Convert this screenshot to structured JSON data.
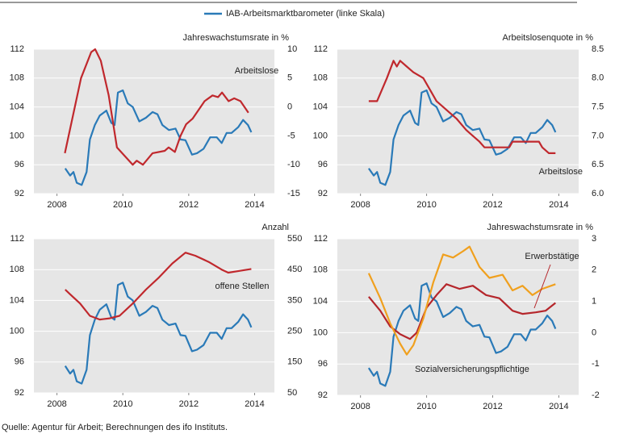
{
  "source": "Quelle: Agentur für Arbeit; Berechnungen des ifo Instituts.",
  "chart_data": [
    {
      "type": "line",
      "y2label": "Jahreswachstumsrate in %",
      "xlim": [
        2007.3,
        2014.6
      ],
      "xticks": [
        2008,
        2010,
        2012,
        2014
      ],
      "ylim": [
        92,
        112
      ],
      "yticks": [
        92,
        96,
        100,
        104,
        108,
        112
      ],
      "y2lim": [
        -15,
        10
      ],
      "y2ticks": [
        -15,
        -10,
        -5,
        0,
        5,
        10
      ],
      "grid": true,
      "series": [
        {
          "name": "IAB-Arbeitsmarktbarometer (linke Skala)",
          "color": "#2a7ab8",
          "x": [
            2008.25,
            2008.4,
            2008.5,
            2008.6,
            2008.75,
            2008.9,
            2009.0,
            2009.15,
            2009.3,
            2009.5,
            2009.65,
            2009.75,
            2009.85,
            2010.0,
            2010.15,
            2010.3,
            2010.5,
            2010.7,
            2010.9,
            2011.05,
            2011.2,
            2011.4,
            2011.6,
            2011.75,
            2011.9,
            2012.1,
            2012.25,
            2012.45,
            2012.65,
            2012.85,
            2013.0,
            2013.15,
            2013.3,
            2013.5,
            2013.65,
            2013.8,
            2013.9
          ],
          "values": [
            95.5,
            94.5,
            95,
            93.5,
            93.2,
            95,
            99.5,
            101.5,
            102.8,
            103.5,
            101.8,
            101.5,
            106,
            106.3,
            104.5,
            104,
            102,
            102.5,
            103.3,
            103.0,
            101.5,
            100.8,
            101,
            99.5,
            99.4,
            97.4,
            97.6,
            98.2,
            99.8,
            99.8,
            99,
            100.4,
            100.4,
            101.2,
            102.2,
            101.5,
            100.5
          ]
        },
        {
          "name": "Arbeitslose",
          "color": "#c0282d",
          "axis": "y2",
          "x": [
            2008.24,
            2008.73,
            2009.04,
            2009.16,
            2009.33,
            2009.57,
            2009.82,
            2010.06,
            2010.3,
            2010.42,
            2010.61,
            2010.9,
            2011.27,
            2011.39,
            2011.58,
            2011.75,
            2011.92,
            2012.12,
            2012.48,
            2012.72,
            2012.89,
            2013.01,
            2013.21,
            2013.38,
            2013.57,
            2013.81
          ],
          "values": [
            -8,
            5,
            9.5,
            10,
            8,
            2,
            -7,
            -8.5,
            -10,
            -9.3,
            -10,
            -8,
            -7.6,
            -7,
            -7.8,
            -5,
            -3,
            -2,
            1,
            2,
            1.7,
            2.5,
            1,
            1.5,
            1,
            -1
          ]
        }
      ]
    },
    {
      "type": "line",
      "y2label": "Arbeitslosenquote in %",
      "xlim": [
        2007.3,
        2014.6
      ],
      "xticks": [
        2008,
        2010,
        2012,
        2014
      ],
      "ylim": [
        92,
        112
      ],
      "yticks": [
        92,
        96,
        100,
        104,
        108,
        112
      ],
      "y2lim": [
        6,
        8.5
      ],
      "y2ticks": [
        {
          "value": 6,
          "label": "6.0"
        },
        6.5,
        {
          "value": 7,
          "label": "7.0"
        },
        7.5,
        {
          "value": 8,
          "label": "8.0"
        },
        8.5
      ],
      "grid": true,
      "series": [
        {
          "color": "#2a7ab8",
          "x": [
            2008.25,
            2008.4,
            2008.5,
            2008.6,
            2008.75,
            2008.9,
            2009.0,
            2009.15,
            2009.3,
            2009.5,
            2009.65,
            2009.75,
            2009.85,
            2010.0,
            2010.15,
            2010.3,
            2010.5,
            2010.7,
            2010.9,
            2011.05,
            2011.2,
            2011.4,
            2011.6,
            2011.75,
            2011.9,
            2012.1,
            2012.25,
            2012.45,
            2012.65,
            2012.85,
            2013.0,
            2013.15,
            2013.3,
            2013.5,
            2013.65,
            2013.8,
            2013.9
          ],
          "values": [
            95.5,
            94.5,
            95,
            93.5,
            93.2,
            95,
            99.5,
            101.5,
            102.8,
            103.5,
            101.8,
            101.5,
            106,
            106.3,
            104.5,
            104,
            102,
            102.5,
            103.3,
            103.0,
            101.5,
            100.8,
            101,
            99.5,
            99.4,
            97.4,
            97.6,
            98.2,
            99.8,
            99.8,
            99,
            100.4,
            100.4,
            101.2,
            102.2,
            101.5,
            100.5
          ]
        },
        {
          "name": "Arbeitslose",
          "color": "#c0282d",
          "axis": "y2",
          "x": [
            2008.25,
            2008.5,
            2008.8,
            2009.0,
            2009.1,
            2009.2,
            2009.4,
            2009.6,
            2009.9,
            2010.1,
            2010.3,
            2010.7,
            2010.9,
            2011.2,
            2011.4,
            2011.6,
            2011.75,
            2012.5,
            2012.6,
            2013.4,
            2013.5,
            2013.7,
            2013.9
          ],
          "values": [
            7.6,
            7.6,
            8.0,
            8.3,
            8.2,
            8.3,
            8.2,
            8.1,
            8.0,
            7.8,
            7.6,
            7.4,
            7.3,
            7.1,
            7.0,
            6.9,
            6.8,
            6.8,
            6.9,
            6.9,
            6.8,
            6.7,
            6.7
          ]
        }
      ]
    },
    {
      "type": "line",
      "y2label": "Anzahl",
      "xlim": [
        2007.3,
        2014.6
      ],
      "xticks": [
        2008,
        2010,
        2012,
        2014
      ],
      "ylim": [
        92,
        112
      ],
      "yticks": [
        92,
        96,
        100,
        104,
        108,
        112
      ],
      "y2lim": [
        50,
        550
      ],
      "y2ticks": [
        50,
        150,
        250,
        350,
        450,
        550
      ],
      "grid": true,
      "series": [
        {
          "color": "#2a7ab8",
          "x": [
            2008.25,
            2008.4,
            2008.5,
            2008.6,
            2008.75,
            2008.9,
            2009.0,
            2009.15,
            2009.3,
            2009.5,
            2009.65,
            2009.75,
            2009.85,
            2010.0,
            2010.15,
            2010.3,
            2010.5,
            2010.7,
            2010.9,
            2011.05,
            2011.2,
            2011.4,
            2011.6,
            2011.75,
            2011.9,
            2012.1,
            2012.25,
            2012.45,
            2012.65,
            2012.85,
            2013.0,
            2013.15,
            2013.3,
            2013.5,
            2013.65,
            2013.8,
            2013.9
          ],
          "values": [
            95.5,
            94.5,
            95,
            93.5,
            93.2,
            95,
            99.5,
            101.5,
            102.8,
            103.5,
            101.8,
            101.5,
            106,
            106.3,
            104.5,
            104,
            102,
            102.5,
            103.3,
            103.0,
            101.5,
            100.8,
            101,
            99.5,
            99.4,
            97.4,
            97.6,
            98.2,
            99.8,
            99.8,
            99,
            100.4,
            100.4,
            101.2,
            102.2,
            101.5,
            100.5
          ]
        },
        {
          "name": "offene Stellen",
          "color": "#c0282d",
          "axis": "y2",
          "x": [
            2008.25,
            2008.4,
            2008.7,
            2009.0,
            2009.3,
            2009.6,
            2009.9,
            2010.3,
            2010.7,
            2011.1,
            2011.5,
            2011.9,
            2012.2,
            2012.6,
            2013.0,
            2013.2,
            2013.5,
            2013.9
          ],
          "values": [
            385,
            370,
            340,
            300,
            288,
            292,
            300,
            340,
            385,
            425,
            470,
            505,
            495,
            475,
            450,
            440,
            445,
            452
          ]
        }
      ]
    },
    {
      "type": "line",
      "y2label": "Jahreswachstumsrate in %",
      "xlim": [
        2007.3,
        2014.6
      ],
      "xticks": [
        2008,
        2010,
        2012,
        2014
      ],
      "ylim": [
        92,
        112
      ],
      "yticks": [
        92,
        96,
        100,
        104,
        108,
        112
      ],
      "y2lim": [
        -2,
        3
      ],
      "y2ticks": [
        -2,
        -1,
        0,
        1,
        2,
        3
      ],
      "grid": true,
      "series": [
        {
          "color": "#2a7ab8",
          "x": [
            2008.25,
            2008.4,
            2008.5,
            2008.6,
            2008.75,
            2008.9,
            2009.0,
            2009.15,
            2009.3,
            2009.5,
            2009.65,
            2009.75,
            2009.85,
            2010.0,
            2010.15,
            2010.3,
            2010.5,
            2010.7,
            2010.9,
            2011.05,
            2011.2,
            2011.4,
            2011.6,
            2011.75,
            2011.9,
            2012.1,
            2012.25,
            2012.45,
            2012.65,
            2012.85,
            2013.0,
            2013.15,
            2013.3,
            2013.5,
            2013.65,
            2013.8,
            2013.9
          ],
          "values": [
            95.5,
            94.5,
            95,
            93.5,
            93.2,
            95,
            99.5,
            101.5,
            102.8,
            103.5,
            101.8,
            101.5,
            106,
            106.3,
            104.5,
            104,
            102,
            102.5,
            103.3,
            103.0,
            101.5,
            100.8,
            101,
            99.5,
            99.4,
            97.4,
            97.6,
            98.2,
            99.8,
            99.8,
            99,
            100.4,
            100.4,
            101.2,
            102.2,
            101.5,
            100.5
          ]
        },
        {
          "name": "Erwerbstätige",
          "color": "#b5262b",
          "axis": "y2",
          "x": [
            2008.25,
            2008.6,
            2008.9,
            2009.2,
            2009.5,
            2009.7,
            2010.0,
            2010.3,
            2010.6,
            2011.0,
            2011.4,
            2011.8,
            2012.2,
            2012.6,
            2012.9,
            2013.3,
            2013.6,
            2013.9
          ],
          "values": [
            1.15,
            0.7,
            0.2,
            -0.05,
            -0.2,
            0,
            0.8,
            1.2,
            1.55,
            1.4,
            1.5,
            1.2,
            1.1,
            0.7,
            0.6,
            0.65,
            0.7,
            0.95
          ]
        },
        {
          "name": "Sozialversicherungspflichtige",
          "color": "#f0a01e",
          "axis": "y2",
          "x": [
            2008.25,
            2008.6,
            2008.9,
            2009.2,
            2009.4,
            2009.6,
            2009.9,
            2010.2,
            2010.5,
            2010.8,
            2011.1,
            2011.3,
            2011.6,
            2011.9,
            2012.3,
            2012.6,
            2012.9,
            2013.2,
            2013.5,
            2013.9
          ],
          "values": [
            1.9,
            1.1,
            0.3,
            -0.35,
            -0.7,
            -0.4,
            0.45,
            1.6,
            2.5,
            2.4,
            2.6,
            2.75,
            2.1,
            1.75,
            1.85,
            1.35,
            1.5,
            1.2,
            1.4,
            1.55
          ]
        }
      ]
    }
  ]
}
